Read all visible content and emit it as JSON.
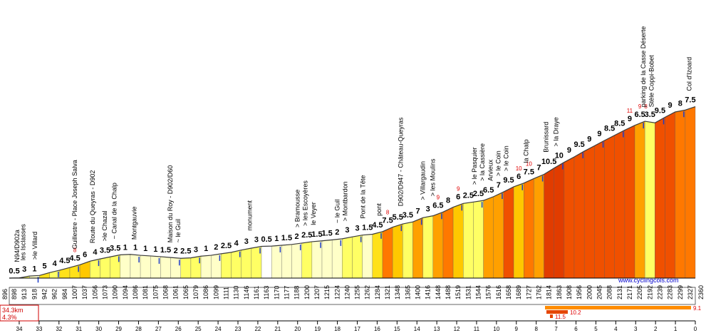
{
  "chart_data": {
    "type": "area",
    "title": "",
    "xlabel": "",
    "ylabel": "",
    "x_axis": {
      "direction": "descending",
      "ticks": [
        "34",
        "33",
        "32",
        "31",
        "30",
        "29",
        "28",
        "27",
        "26",
        "25",
        "24",
        "23",
        "22",
        "21",
        "20",
        "19",
        "18",
        "17",
        "16",
        "15",
        "14",
        "13",
        "12",
        "11",
        "10",
        "9",
        "8",
        "7",
        "6",
        "5",
        "4",
        "3",
        "2",
        "1",
        "0"
      ]
    },
    "start_altitude": "896",
    "end_altitude": "2360",
    "altitudes": [
      "898",
      "913",
      "918",
      "942",
      "962",
      "984",
      "1007",
      "1037",
      "1056",
      "1073",
      "1090",
      "1094",
      "1086",
      "1081",
      "1075",
      "1068",
      "1061",
      "1065",
      "1079",
      "1086",
      "1099",
      "1111",
      "1130",
      "1146",
      "1161",
      "1163",
      "1170",
      "1177",
      "1188",
      "1200",
      "1207",
      "1215",
      "1224",
      "1240",
      "1255",
      "1262",
      "1284",
      "1321",
      "1348",
      "1365",
      "1400",
      "1416",
      "1448",
      "1488",
      "1519",
      "1531",
      "1544",
      "1576",
      "1616",
      "1658",
      "1689",
      "1727",
      "1762",
      "1814",
      "1863",
      "1908",
      "1956",
      "2000",
      "2045",
      "2088",
      "2131",
      "2171",
      "2205",
      "2192",
      "2239",
      "2283",
      "2299",
      "2327"
    ],
    "gradients": [
      "0.5",
      "3",
      "1",
      "5",
      "4",
      "4.5",
      "4.5",
      "6",
      "4",
      "3.5",
      "3.5",
      "1",
      "1",
      "1",
      "1",
      "1.5",
      "2",
      "2.5",
      "3",
      "1",
      "2",
      "2.5",
      "4",
      "3",
      "3",
      "0.5",
      "1",
      "1.5",
      "2",
      "2.5",
      "1.5",
      "1.5",
      "2",
      "3",
      "3",
      "1.5",
      "4.5",
      "7.5",
      "5.5",
      "3.5",
      "7",
      "3",
      "6.5",
      "8",
      "6",
      "2.5",
      "2.5",
      "6.5",
      "7",
      "9.5",
      "6",
      "7.5",
      "7",
      "10.5",
      "10",
      "9",
      "9.5",
      "9",
      "9",
      "8.5",
      "8.5",
      "9",
      "6.5",
      "3.5",
      "9.5",
      "9",
      "8",
      "7.5"
    ],
    "max_gradients": [
      {
        "seg": 6,
        "value": "8"
      },
      {
        "seg": 37,
        "value": "8"
      },
      {
        "seg": 42,
        "value": "9"
      },
      {
        "seg": 44,
        "value": "9"
      },
      {
        "seg": 50,
        "value": "10"
      },
      {
        "seg": 51,
        "value": "10"
      },
      {
        "seg": 61,
        "value": "11"
      },
      {
        "seg": 62,
        "value": "9"
      },
      {
        "seg": 62.6,
        "value": "8"
      }
    ],
    "places": [
      {
        "km": 34.0,
        "label": "N94/D902a"
      },
      {
        "km": 33.7,
        "label": "les Isclasses"
      },
      {
        "km": 33.1,
        "label": ">le Villard"
      },
      {
        "km": 31.1,
        "label": "Guillestre - Place Joseph Salva"
      },
      {
        "km": 30.2,
        "label": "Route du Queyras - D902"
      },
      {
        "km": 29.6,
        "label": ">le Chazal"
      },
      {
        "km": 29.1,
        "label": "~ Canal de la Chalp"
      },
      {
        "km": 28.1,
        "label": "Montgauvie"
      },
      {
        "km": 26.3,
        "label": "Maison du Roy - D902/D60"
      },
      {
        "km": 25.9,
        "label": "~ le Guil"
      },
      {
        "km": 22.3,
        "label": "monument"
      },
      {
        "km": 19.9,
        "label": "> Bramousse"
      },
      {
        "km": 19.5,
        "label": "> les Escoyères"
      },
      {
        "km": 19.1,
        "label": "le Veyer"
      },
      {
        "km": 17.9,
        "label": "~ le Guil"
      },
      {
        "km": 17.5,
        "label": "> Montbardon"
      },
      {
        "km": 16.6,
        "label": "Pont de la Tête"
      },
      {
        "km": 15.8,
        "label": "pont"
      },
      {
        "km": 14.7,
        "label": "D902/D947 - Château-Queyras"
      },
      {
        "km": 13.6,
        "label": "> Villargaudin"
      },
      {
        "km": 13.1,
        "label": "> les Moulins"
      },
      {
        "km": 11.0,
        "label": "> le Pasquier"
      },
      {
        "km": 10.6,
        "label": "> la Cassière"
      },
      {
        "km": 10.2,
        "label": "Arvieux"
      },
      {
        "km": 9.8,
        "label": "> le Coin"
      },
      {
        "km": 9.4,
        "label": "> le Coin"
      },
      {
        "km": 8.4,
        "label": "la Chalp"
      },
      {
        "km": 7.4,
        "label": "Brunissard"
      },
      {
        "km": 6.9,
        "label": "> la Draye"
      },
      {
        "km": 2.5,
        "label": "parking de la Casse Déserte"
      },
      {
        "km": 2.1,
        "label": "Stèle Coppi-Bobet"
      },
      {
        "km": 0.2,
        "label": "Col d'Izoard"
      }
    ],
    "summary": {
      "distance": "34.3km",
      "avg_gradient": "4.3%"
    },
    "climb_bars": [
      "9.1",
      "10.2",
      "11.5"
    ],
    "source": "www.cyclingcols.com",
    "colors": {
      "g0": "#ffffff",
      "g1": "#ffffc8",
      "g3": "#ffff64",
      "g5": "#ffe119",
      "g6": "#ffc800",
      "g7": "#ffa000",
      "g8": "#ff7800",
      "g9": "#f05000",
      "g10": "#e13c00",
      "sumbar": "#ff8c00",
      "maxbar": "#e64600"
    }
  }
}
